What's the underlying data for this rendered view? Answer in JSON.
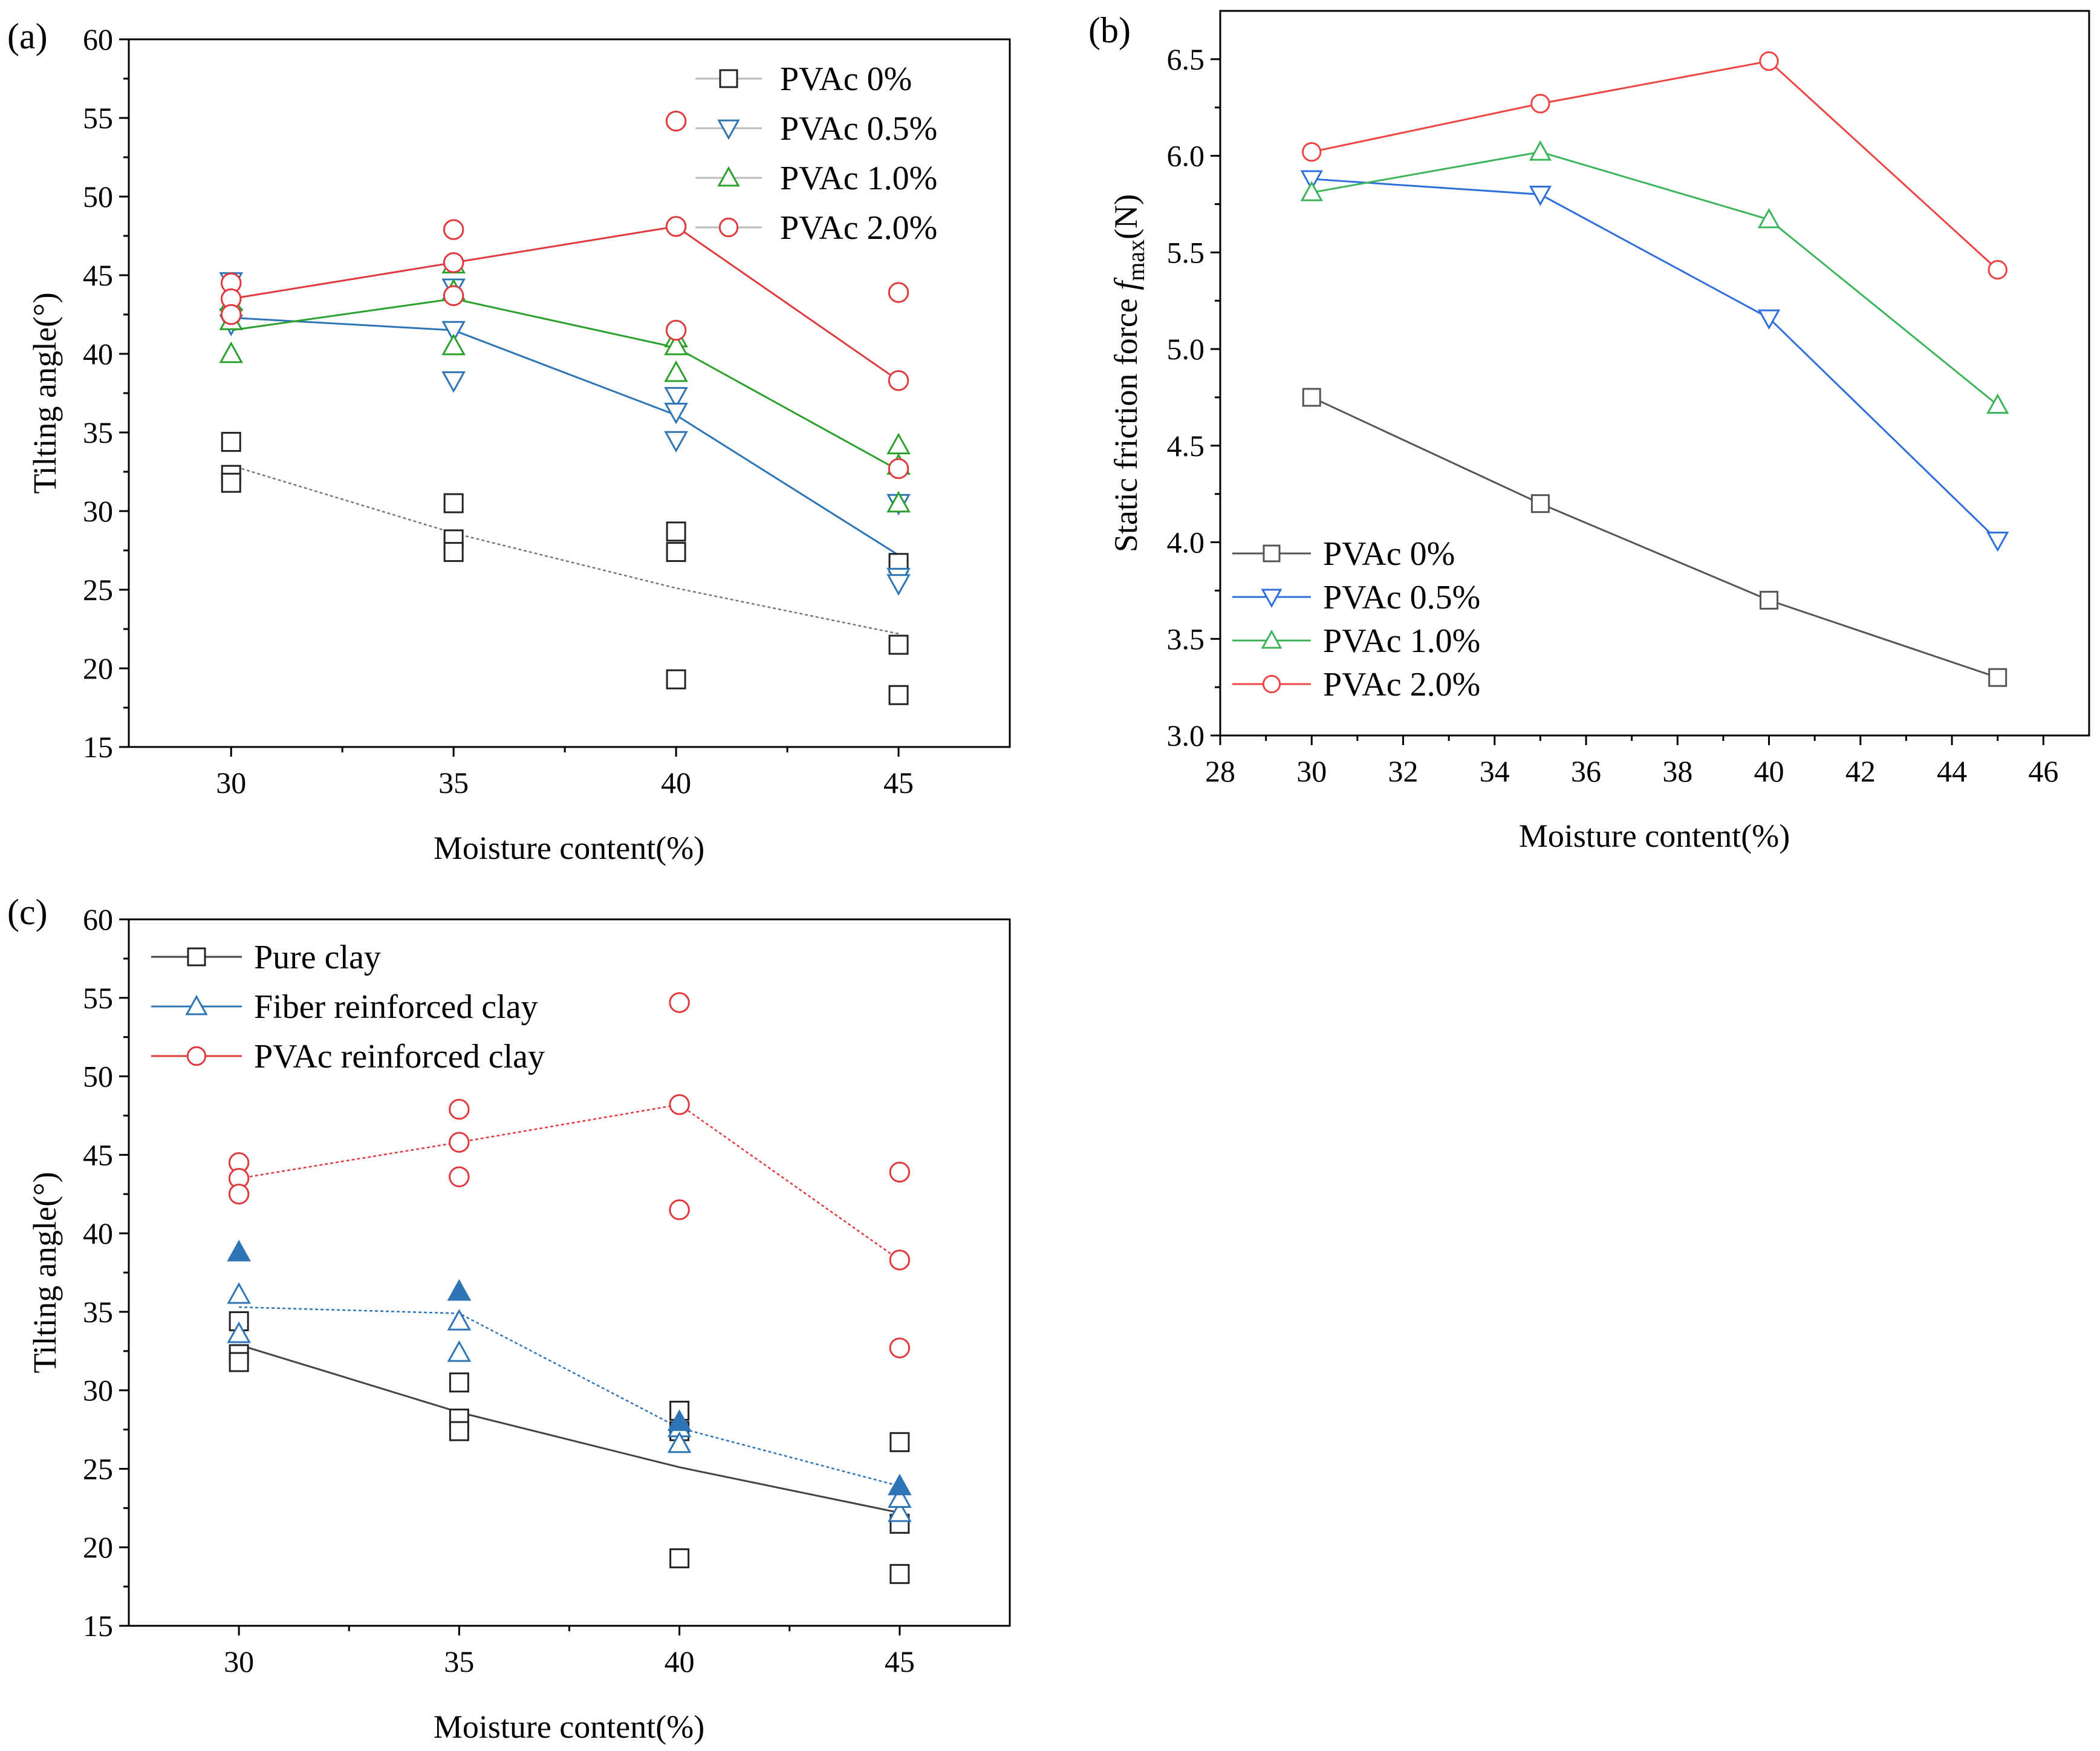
{
  "chart_data": [
    {
      "id": "a",
      "panel_label": "(a)",
      "type": "scatter",
      "xlabel": "Moisture content(%)",
      "ylabel": "Tilting angle(°)",
      "xlim": [
        27.7,
        47.5
      ],
      "ylim": [
        15,
        60
      ],
      "xticks": [
        30,
        35,
        40,
        45
      ],
      "xtick_labels": [
        "30",
        "35",
        "40",
        "45"
      ],
      "yticks": [
        15,
        20,
        25,
        30,
        35,
        40,
        45,
        50,
        55,
        60
      ],
      "ytick_labels": [
        "15",
        "20",
        "25",
        "30",
        "35",
        "40",
        "45",
        "50",
        "55",
        "60"
      ],
      "legend_position": "top-right",
      "series": [
        {
          "name": "PVAc 0%",
          "color": "#222222",
          "marker": "square",
          "line": "dotted",
          "line_color": "#777777",
          "points": [
            [
              30,
              34.4
            ],
            [
              30,
              32.3
            ],
            [
              30,
              31.8
            ],
            [
              35,
              30.5
            ],
            [
              35,
              28.2
            ],
            [
              35,
              27.4
            ],
            [
              40,
              28.7
            ],
            [
              40,
              27.4
            ],
            [
              40,
              19.3
            ],
            [
              45,
              26.7
            ],
            [
              45,
              21.5
            ],
            [
              45,
              18.3
            ]
          ],
          "mean": [
            [
              30,
              32.9
            ],
            [
              35,
              28.6
            ],
            [
              40,
              25.1
            ],
            [
              45,
              22.2
            ]
          ]
        },
        {
          "name": "PVAc 0.5%",
          "color": "#2e75b6",
          "marker": "triangle-down",
          "line": "solid",
          "points": [
            [
              30,
              44.6
            ],
            [
              30,
              42.3
            ],
            [
              30,
              41.9
            ],
            [
              35,
              44.2
            ],
            [
              35,
              41.5
            ],
            [
              35,
              38.3
            ],
            [
              40,
              37.3
            ],
            [
              40,
              36.3
            ],
            [
              40,
              34.5
            ],
            [
              45,
              30.5
            ],
            [
              45,
              25.8
            ],
            [
              45,
              25.4
            ]
          ],
          "mean": [
            [
              30,
              42.3
            ],
            [
              35,
              41.5
            ],
            [
              40,
              36.1
            ],
            [
              45,
              27.2
            ]
          ]
        },
        {
          "name": "PVAc 1.0%",
          "color": "#2ca02c",
          "marker": "triangle-up",
          "line": "solid",
          "points": [
            [
              30,
              43.3
            ],
            [
              30,
              42.1
            ],
            [
              30,
              40.0
            ],
            [
              35,
              45.7
            ],
            [
              35,
              44.0
            ],
            [
              35,
              40.5
            ],
            [
              40,
              41.0
            ],
            [
              40,
              40.5
            ],
            [
              40,
              38.8
            ],
            [
              45,
              34.2
            ],
            [
              45,
              32.9
            ],
            [
              45,
              30.5
            ]
          ],
          "mean": [
            [
              30,
              41.5
            ],
            [
              35,
              43.5
            ],
            [
              40,
              40.4
            ],
            [
              45,
              32.6
            ]
          ]
        },
        {
          "name": "PVAc 2.0%",
          "color": "#e0393e",
          "marker": "circle",
          "line": "solid",
          "points": [
            [
              30,
              44.5
            ],
            [
              30,
              43.5
            ],
            [
              30,
              42.5
            ],
            [
              35,
              47.9
            ],
            [
              35,
              45.8
            ],
            [
              35,
              43.7
            ],
            [
              40,
              54.8
            ],
            [
              40,
              48.1
            ],
            [
              40,
              41.5
            ],
            [
              45,
              43.9
            ],
            [
              45,
              38.3
            ],
            [
              45,
              32.7
            ]
          ],
          "mean": [
            [
              30,
              43.5
            ],
            [
              35,
              45.8
            ],
            [
              40,
              48.1
            ],
            [
              45,
              38.3
            ]
          ]
        }
      ]
    },
    {
      "id": "b",
      "panel_label": "(b)",
      "type": "line",
      "xlabel": "Moisture content(%)",
      "ylabel": "Static friction force f_max(N)",
      "ylabel_parts": {
        "main": "Static friction force ",
        "italic": "f",
        "sub": "max",
        "unit": "(N)"
      },
      "xlim": [
        28,
        47
      ],
      "ylim": [
        3.0,
        6.75
      ],
      "xticks": [
        28,
        30,
        32,
        34,
        36,
        38,
        40,
        42,
        44,
        46
      ],
      "xtick_labels": [
        "28",
        "30",
        "32",
        "34",
        "36",
        "38",
        "40",
        "42",
        "44",
        "46"
      ],
      "yticks": [
        3.0,
        3.5,
        4.0,
        4.5,
        5.0,
        5.5,
        6.0,
        6.5
      ],
      "ytick_labels": [
        "3.0",
        "3.5",
        "4.0",
        "4.5",
        "5.0",
        "5.5",
        "6.0",
        "6.5"
      ],
      "legend_position": "bottom-left",
      "series": [
        {
          "name": "PVAc 0%",
          "color": "#555555",
          "marker": "square",
          "x": [
            30,
            35,
            40,
            45
          ],
          "values": [
            4.75,
            4.2,
            3.7,
            3.3
          ]
        },
        {
          "name": "PVAc 0.5%",
          "color": "#2e6fdc",
          "marker": "triangle-down",
          "x": [
            30,
            35,
            40,
            45
          ],
          "values": [
            5.88,
            5.8,
            5.16,
            4.01
          ]
        },
        {
          "name": "PVAc 1.0%",
          "color": "#3cb55a",
          "marker": "triangle-up",
          "x": [
            30,
            35,
            40,
            45
          ],
          "values": [
            5.81,
            6.02,
            5.67,
            4.71
          ]
        },
        {
          "name": "PVAc 2.0%",
          "color": "#ee4444",
          "marker": "circle",
          "x": [
            30,
            35,
            40,
            45
          ],
          "values": [
            6.02,
            6.27,
            6.49,
            5.41
          ]
        }
      ]
    },
    {
      "id": "c",
      "panel_label": "(c)",
      "type": "scatter",
      "xlabel": "Moisture content(%)",
      "ylabel": "Tilting angle(°)",
      "xlim": [
        27.5,
        47.5
      ],
      "ylim": [
        15,
        60
      ],
      "xticks": [
        30,
        35,
        40,
        45
      ],
      "xtick_labels": [
        "30",
        "35",
        "40",
        "45"
      ],
      "yticks": [
        15,
        20,
        25,
        30,
        35,
        40,
        45,
        50,
        55,
        60
      ],
      "ytick_labels": [
        "15",
        "20",
        "25",
        "30",
        "35",
        "40",
        "45",
        "50",
        "55",
        "60"
      ],
      "legend_position": "top-left",
      "series": [
        {
          "name": "Pure clay",
          "color": "#222222",
          "marker": "square",
          "line": "solid",
          "line_color": "#444444",
          "points": [
            [
              30,
              34.4
            ],
            [
              30,
              32.3
            ],
            [
              30,
              31.8
            ],
            [
              35,
              30.5
            ],
            [
              35,
              28.2
            ],
            [
              35,
              27.4
            ],
            [
              40,
              28.7
            ],
            [
              40,
              27.4
            ],
            [
              40,
              19.3
            ],
            [
              45,
              26.7
            ],
            [
              45,
              21.5
            ],
            [
              45,
              18.3
            ]
          ],
          "mean": [
            [
              30,
              32.9
            ],
            [
              35,
              28.6
            ],
            [
              40,
              25.1
            ],
            [
              45,
              22.2
            ]
          ]
        },
        {
          "name": "Fiber reinforced clay",
          "color": "#2e75b6",
          "marker": "triangle-up",
          "line": "dotted",
          "points": [
            [
              30,
              36.1
            ],
            [
              30,
              33.6
            ],
            [
              35,
              34.4
            ],
            [
              35,
              32.4
            ],
            [
              40,
              27.6
            ],
            [
              40,
              26.6
            ],
            [
              45,
              22.2
            ],
            [
              45,
              23.1
            ]
          ],
          "filled_points": [
            [
              30,
              38.8
            ],
            [
              35,
              36.3
            ],
            [
              40,
              28.0
            ],
            [
              45,
              23.9
            ]
          ],
          "mean": [
            [
              30,
              35.3
            ],
            [
              35,
              34.9
            ],
            [
              40,
              27.6
            ],
            [
              45,
              23.9
            ]
          ]
        },
        {
          "name": "PVAc reinforced clay",
          "color": "#e0393e",
          "marker": "circle",
          "line": "dotted",
          "points": [
            [
              30,
              44.5
            ],
            [
              30,
              43.5
            ],
            [
              30,
              42.5
            ],
            [
              35,
              47.9
            ],
            [
              35,
              45.8
            ],
            [
              35,
              43.6
            ],
            [
              40,
              54.7
            ],
            [
              40,
              48.2
            ],
            [
              40,
              41.5
            ],
            [
              45,
              43.9
            ],
            [
              45,
              38.3
            ],
            [
              45,
              32.7
            ]
          ],
          "mean": [
            [
              30,
              43.5
            ],
            [
              35,
              45.8
            ],
            [
              40,
              48.2
            ],
            [
              45,
              38.3
            ]
          ]
        }
      ]
    }
  ]
}
